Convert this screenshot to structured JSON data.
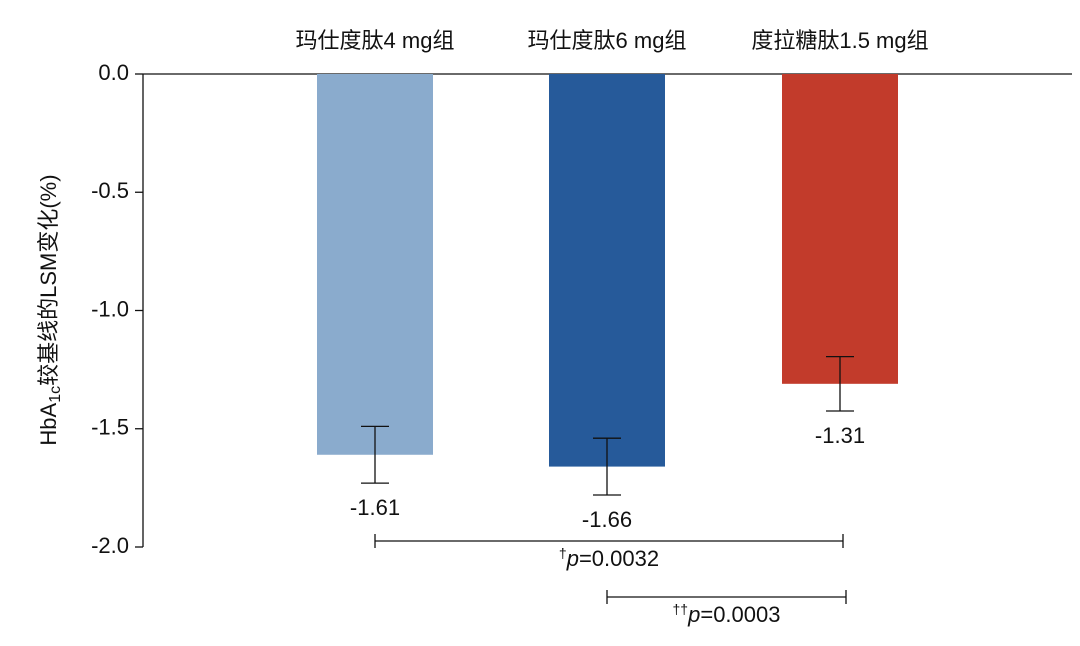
{
  "chart_data": {
    "type": "bar",
    "categories": [
      "玛仕度肽4 mg组",
      "玛仕度肽6 mg组",
      "度拉糖肽1.5 mg组"
    ],
    "values": [
      -1.61,
      -1.66,
      -1.31
    ],
    "errors": [
      0.12,
      0.12,
      0.115
    ],
    "colors": [
      "#8aabcd",
      "#265a9a",
      "#c23b2b"
    ],
    "y_label": [
      "HbA",
      "1c",
      "较基线的LSM变化(%)"
    ],
    "ylim": [
      -2.0,
      0.0
    ],
    "yticks": [
      {
        "value": 0,
        "label": "0.0"
      },
      -0.5,
      {
        "value": -1,
        "label": "-1.0"
      },
      -1.5,
      {
        "value": -2,
        "label": "-2.0"
      }
    ],
    "comparisons": [
      {
        "from": 0,
        "to": 2,
        "marker": "†",
        "p": "p",
        "text": "=0.0032"
      },
      {
        "from": 1,
        "to": 2,
        "marker": "††",
        "p": "p",
        "text": "=0.0003"
      }
    ]
  }
}
